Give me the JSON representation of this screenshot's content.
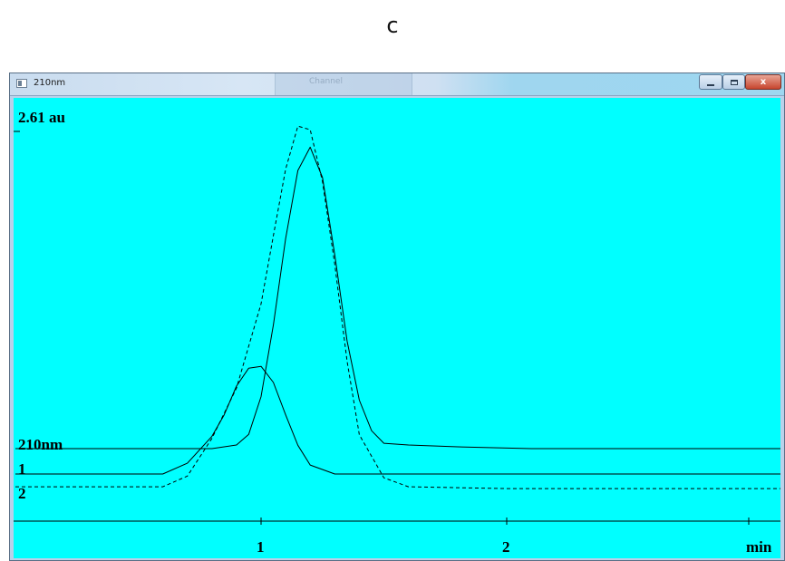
{
  "figure": {
    "panel_letter": "c"
  },
  "window": {
    "title": "210nm",
    "background_tab_label": "Channel",
    "controls": {
      "minimize": "",
      "maximize": "",
      "close": "x"
    }
  },
  "plot": {
    "y_max_label": "2.61 au",
    "trace_labels": [
      "210nm",
      "1",
      "2"
    ],
    "x_tick_labels": [
      "1",
      "2"
    ],
    "x_unit_label": "min",
    "background_color": "#00ffff",
    "line_color": "#000000"
  },
  "chart_data": {
    "type": "line",
    "title": "",
    "xlabel": "min",
    "ylabel": "au",
    "xlim": [
      0,
      2.1
    ],
    "ylim": [
      0,
      2.61
    ],
    "x_ticks": [
      1,
      2
    ],
    "legend": "inline-left",
    "grid": false,
    "series": [
      {
        "name": "210nm",
        "style": "dashed",
        "x": [
          0,
          0.6,
          0.7,
          0.8,
          0.9,
          1.0,
          1.05,
          1.1,
          1.15,
          1.2,
          1.25,
          1.3,
          1.35,
          1.4,
          1.5,
          1.6,
          2.0,
          2.1
        ],
        "y": [
          0.07,
          0.07,
          0.13,
          0.34,
          0.62,
          1.09,
          1.47,
          1.84,
          2.08,
          2.06,
          1.77,
          1.31,
          0.77,
          0.36,
          0.12,
          0.07,
          0.06,
          0.06
        ]
      },
      {
        "name": "1",
        "style": "solid",
        "x": [
          0,
          0.6,
          0.7,
          0.8,
          0.85,
          0.9,
          0.95,
          1.0,
          1.05,
          1.1,
          1.15,
          1.2,
          1.3,
          1.6,
          2.1
        ],
        "y": [
          0.0,
          0.0,
          0.06,
          0.21,
          0.33,
          0.49,
          0.59,
          0.6,
          0.51,
          0.33,
          0.16,
          0.05,
          0.0,
          0.0,
          0.0
        ]
      },
      {
        "name": "2",
        "style": "solid",
        "x": [
          0,
          0.8,
          0.9,
          0.95,
          1.0,
          1.05,
          1.1,
          1.15,
          1.2,
          1.25,
          1.3,
          1.35,
          1.4,
          1.45,
          1.5,
          1.6,
          1.8,
          2.1
        ],
        "y": [
          0.0,
          0.0,
          0.02,
          0.08,
          0.29,
          0.69,
          1.17,
          1.55,
          1.68,
          1.51,
          1.08,
          0.6,
          0.27,
          0.1,
          0.03,
          0.02,
          0.01,
          0.0
        ]
      }
    ]
  }
}
